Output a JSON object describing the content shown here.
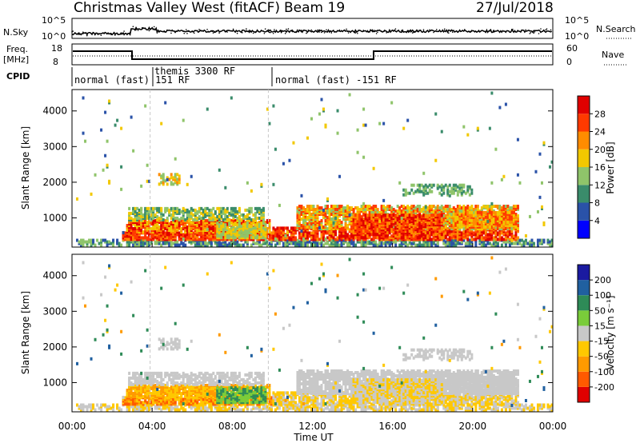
{
  "header": {
    "title": "Christmas Valley West (fitACF)",
    "beam": "Beam 19",
    "date": "27/Jul/2018"
  },
  "top_panels": {
    "nsky_label": "N.Sky",
    "nsky_ticks": [
      "10^5",
      "10^0"
    ],
    "nsearch_label": "N.Search",
    "nsearch_ticks": [
      "10^5",
      "10^0"
    ],
    "freq_label_1": "Freq.",
    "freq_label_2": "[MHz]",
    "freq_ticks": [
      "18",
      "8"
    ],
    "nave_label": "Nave",
    "nave_ticks": [
      "60",
      "0"
    ],
    "cpid_label": "CPID",
    "cpid_segments": [
      {
        "text": "normal (fast) 151 RF"
      },
      {
        "text": "themis 3300 RF"
      },
      {
        "text": "normal (fast) -151 RF"
      }
    ]
  },
  "chart_data": [
    {
      "type": "heatmap",
      "name": "power-panel",
      "ylabel": "Slant Range [km]",
      "yticks": [
        "4000",
        "3000",
        "2000",
        "1000"
      ],
      "ylim": [
        180,
        4600
      ],
      "xlim": [
        0,
        24
      ],
      "colorbar": {
        "label": "Power [dB]",
        "tick_labels": [
          "28",
          "24",
          "20",
          "16",
          "12",
          "8",
          "4"
        ],
        "colors": [
          "#0000ff",
          "#2a52a8",
          "#3a8c6b",
          "#8fc46a",
          "#f2c800",
          "#ff8c00",
          "#ff3a00",
          "#e00000"
        ]
      }
    },
    {
      "type": "heatmap",
      "name": "velocity-panel",
      "ylabel": "Slant Range [km]",
      "yticks": [
        "4000",
        "3000",
        "2000",
        "1000"
      ],
      "ylim": [
        180,
        4600
      ],
      "xlim": [
        0,
        24
      ],
      "xticks": [
        "00:00",
        "04:00",
        "08:00",
        "12:00",
        "16:00",
        "20:00",
        "00:00"
      ],
      "xlabel": "Time UT",
      "colorbar": {
        "label": "Velocity [m s⁻¹]",
        "tick_labels": [
          "200",
          "100",
          "50",
          "15",
          "-15",
          "-50",
          "-100",
          "-200"
        ],
        "colors": [
          "#e00000",
          "#ff5a00",
          "#ff9a00",
          "#ffc800",
          "#c8c8c8",
          "#7acc3a",
          "#2e8b57",
          "#2060a0",
          "#1a1aa0"
        ]
      }
    }
  ]
}
